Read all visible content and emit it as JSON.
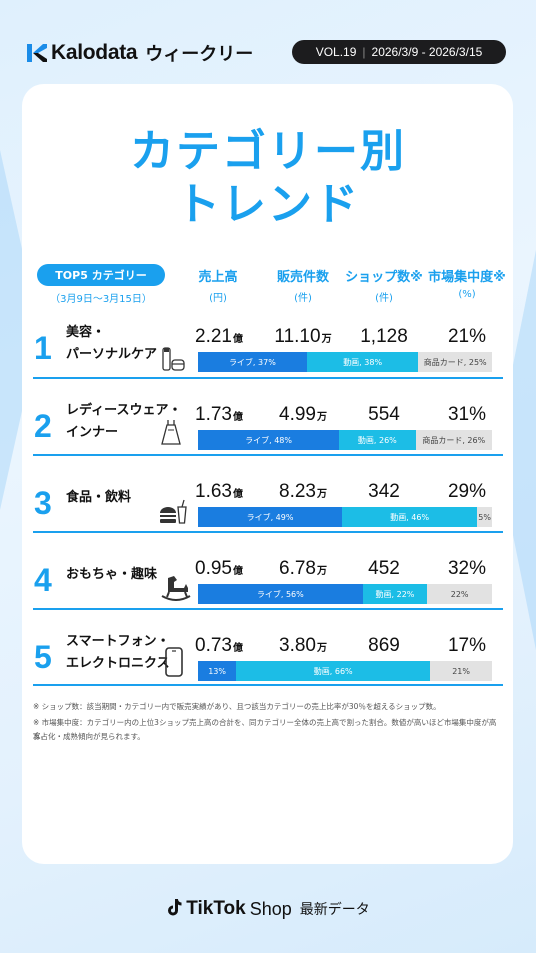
{
  "header": {
    "brand": "Kalodata",
    "weekly": "ウィークリー",
    "vol": "VOL.19",
    "period": "2026/3/9 - 2026/3/15"
  },
  "title": {
    "line1": "カテゴリー別",
    "line2": "トレンド"
  },
  "table_header": {
    "pill": "TOP5 カテゴリー",
    "pill_sub": "（3月9日〜3月15日）",
    "columns": [
      {
        "label": "売上高",
        "unit": "(円)"
      },
      {
        "label": "販売件数",
        "unit": "(件)"
      },
      {
        "label": "ショップ数※",
        "unit": "(件)"
      },
      {
        "label": "市場集中度※",
        "unit": "(%)"
      }
    ]
  },
  "chart_data": {
    "type": "table",
    "rows": [
      {
        "rank": "1",
        "category_l1": "美容・",
        "category_l2": "パーソナルケア",
        "icon": "cosmetics-icon",
        "sales": "2.21",
        "sales_unit": "億",
        "units": "11.10",
        "units_unit": "万",
        "shops": "1,128",
        "concentration": "21%",
        "split": [
          {
            "channel": "live",
            "pct": 37,
            "label": "ライブ, 37%"
          },
          {
            "channel": "video",
            "pct": 38,
            "label": "動画, 38%"
          },
          {
            "channel": "card",
            "pct": 25,
            "label": "商品カード, 25%"
          }
        ]
      },
      {
        "rank": "2",
        "category_l1": "レディースウェア・",
        "category_l2": "インナー",
        "icon": "dress-icon",
        "sales": "1.73",
        "sales_unit": "億",
        "units": "4.99",
        "units_unit": "万",
        "shops": "554",
        "concentration": "31%",
        "split": [
          {
            "channel": "live",
            "pct": 48,
            "label": "ライブ, 48%"
          },
          {
            "channel": "video",
            "pct": 26,
            "label": "動画, 26%"
          },
          {
            "channel": "card",
            "pct": 26,
            "label": "商品カード, 26%"
          }
        ]
      },
      {
        "rank": "3",
        "category_l1": "食品・飲料",
        "category_l2": "",
        "icon": "burger-drink-icon",
        "sales": "1.63",
        "sales_unit": "億",
        "units": "8.23",
        "units_unit": "万",
        "shops": "342",
        "concentration": "29%",
        "split": [
          {
            "channel": "live",
            "pct": 49,
            "label": "ライブ, 49%"
          },
          {
            "channel": "video",
            "pct": 46,
            "label": "動画, 46%"
          },
          {
            "channel": "card",
            "pct": 5,
            "label": "5%"
          }
        ]
      },
      {
        "rank": "4",
        "category_l1": "おもちゃ・趣味",
        "category_l2": "",
        "icon": "rocking-horse-icon",
        "sales": "0.95",
        "sales_unit": "億",
        "units": "6.78",
        "units_unit": "万",
        "shops": "452",
        "concentration": "32%",
        "split": [
          {
            "channel": "live",
            "pct": 56,
            "label": "ライブ, 56%"
          },
          {
            "channel": "video",
            "pct": 22,
            "label": "動画, 22%"
          },
          {
            "channel": "card",
            "pct": 22,
            "label": "22%"
          }
        ]
      },
      {
        "rank": "5",
        "category_l1": "スマートフォン・",
        "category_l2": "エレクトロニクス",
        "icon": "smartphone-icon",
        "sales": "0.73",
        "sales_unit": "億",
        "units": "3.80",
        "units_unit": "万",
        "shops": "869",
        "concentration": "17%",
        "split": [
          {
            "channel": "live",
            "pct": 13,
            "label": "13%"
          },
          {
            "channel": "video",
            "pct": 66,
            "label": "動画, 66%"
          },
          {
            "channel": "card",
            "pct": 21,
            "label": "21%"
          }
        ]
      }
    ],
    "colors": {
      "live": "#1a7de0",
      "video": "#1cbde6",
      "card": "#e2e2e2",
      "accent": "#1aa0ee"
    }
  },
  "notes": [
    "※ ショップ数：該当期間・カテゴリー内で販売実績があり、且つ該当カテゴリーの売上比率が30％を超えるショップ数。",
    "※ 市場集中度：カテゴリー内の上位3ショップ売上高の合計を、同カテゴリー全体の売上高で割った割合。数値が高いほど市場集中度が高く、",
    "寡占化・成熟傾向が見られます。"
  ],
  "footer": {
    "tiktok": "TikTok",
    "shop": "Shop",
    "latest": "最新データ"
  }
}
